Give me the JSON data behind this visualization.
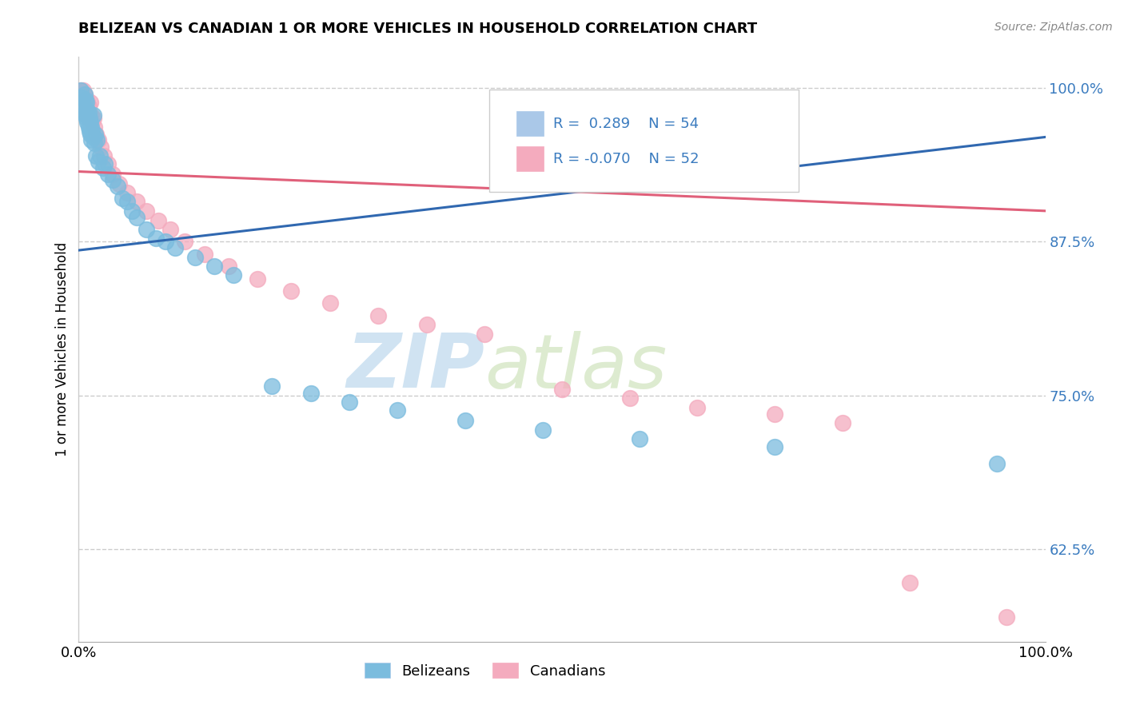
{
  "title": "BELIZEAN VS CANADIAN 1 OR MORE VEHICLES IN HOUSEHOLD CORRELATION CHART",
  "source": "Source: ZipAtlas.com",
  "ylabel": "1 or more Vehicles in Household",
  "xlim": [
    0.0,
    1.0
  ],
  "ylim": [
    0.55,
    1.025
  ],
  "ytick_positions": [
    0.625,
    0.75,
    0.875,
    1.0
  ],
  "ytick_labels": [
    "62.5%",
    "75.0%",
    "87.5%",
    "100.0%"
  ],
  "r_belizean": 0.289,
  "n_belizean": 54,
  "r_canadian": -0.07,
  "n_canadian": 52,
  "blue_color": "#7BBCDE",
  "pink_color": "#F4ABBE",
  "blue_line_color": "#3068B0",
  "pink_line_color": "#E0607A",
  "blue_scatter_edge": "#7BBCDE",
  "pink_scatter_edge": "#F4ABBE",
  "blue_x": [
    0.002,
    0.003,
    0.004,
    0.005,
    0.006,
    0.006,
    0.007,
    0.007,
    0.008,
    0.008,
    0.009,
    0.009,
    0.01,
    0.01,
    0.011,
    0.011,
    0.012,
    0.012,
    0.013,
    0.013,
    0.014,
    0.015,
    0.015,
    0.016,
    0.017,
    0.018,
    0.019,
    0.02,
    0.022,
    0.025,
    0.027,
    0.03,
    0.035,
    0.04,
    0.045,
    0.05,
    0.055,
    0.06,
    0.07,
    0.08,
    0.09,
    0.1,
    0.12,
    0.14,
    0.16,
    0.2,
    0.24,
    0.28,
    0.33,
    0.4,
    0.48,
    0.58,
    0.72,
    0.95
  ],
  "blue_y": [
    0.998,
    0.992,
    0.988,
    0.985,
    0.98,
    0.995,
    0.978,
    0.99,
    0.975,
    0.988,
    0.972,
    0.982,
    0.968,
    0.98,
    0.975,
    0.965,
    0.972,
    0.962,
    0.968,
    0.958,
    0.965,
    0.96,
    0.978,
    0.955,
    0.962,
    0.945,
    0.958,
    0.94,
    0.945,
    0.935,
    0.938,
    0.93,
    0.925,
    0.92,
    0.91,
    0.908,
    0.9,
    0.895,
    0.885,
    0.878,
    0.875,
    0.87,
    0.862,
    0.855,
    0.848,
    0.758,
    0.752,
    0.745,
    0.738,
    0.73,
    0.722,
    0.715,
    0.708,
    0.695
  ],
  "pink_x": [
    0.002,
    0.003,
    0.003,
    0.004,
    0.004,
    0.005,
    0.005,
    0.006,
    0.006,
    0.007,
    0.007,
    0.008,
    0.008,
    0.009,
    0.009,
    0.01,
    0.01,
    0.011,
    0.012,
    0.012,
    0.013,
    0.014,
    0.015,
    0.016,
    0.018,
    0.02,
    0.023,
    0.026,
    0.03,
    0.035,
    0.042,
    0.05,
    0.06,
    0.07,
    0.082,
    0.095,
    0.11,
    0.13,
    0.155,
    0.185,
    0.22,
    0.26,
    0.31,
    0.36,
    0.42,
    0.5,
    0.57,
    0.64,
    0.72,
    0.79,
    0.86,
    0.96
  ],
  "pink_y": [
    0.998,
    0.995,
    0.99,
    0.992,
    0.985,
    0.998,
    0.988,
    0.995,
    0.982,
    0.992,
    0.985,
    0.99,
    0.978,
    0.988,
    0.982,
    0.975,
    0.985,
    0.978,
    0.975,
    0.988,
    0.978,
    0.972,
    0.975,
    0.968,
    0.962,
    0.958,
    0.952,
    0.945,
    0.938,
    0.93,
    0.922,
    0.915,
    0.908,
    0.9,
    0.892,
    0.885,
    0.875,
    0.865,
    0.855,
    0.845,
    0.835,
    0.825,
    0.815,
    0.808,
    0.8,
    0.755,
    0.748,
    0.74,
    0.735,
    0.728,
    0.598,
    0.57
  ],
  "blue_trend": [
    0.868,
    0.96
  ],
  "pink_trend": [
    0.932,
    0.9
  ],
  "watermark_zip": "ZIP",
  "watermark_atlas": "atlas"
}
